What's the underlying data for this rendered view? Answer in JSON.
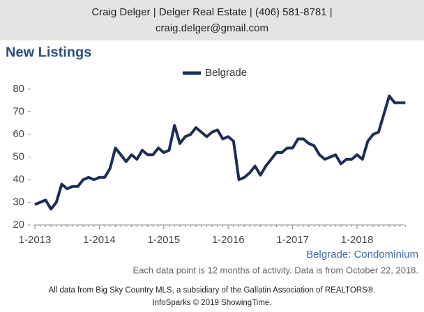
{
  "header": {
    "lines": [
      "Craig Delger | Delger Real Estate | (406) 581-8781 |",
      "craig.delger@gmail.com"
    ]
  },
  "chart_data": {
    "type": "line",
    "title": "New Listings",
    "categories": [
      "1-2013",
      null,
      null,
      null,
      null,
      null,
      null,
      null,
      null,
      null,
      null,
      null,
      "1-2014",
      null,
      null,
      null,
      null,
      null,
      null,
      null,
      null,
      null,
      null,
      null,
      "1-2015",
      null,
      null,
      null,
      null,
      null,
      null,
      null,
      null,
      null,
      null,
      null,
      "1-2016",
      null,
      null,
      null,
      null,
      null,
      null,
      null,
      null,
      null,
      null,
      null,
      "1-2017",
      null,
      null,
      null,
      null,
      null,
      null,
      null,
      null,
      null,
      null,
      null,
      "1-2018",
      null,
      null,
      null,
      null,
      null,
      null,
      null,
      null,
      null
    ],
    "series": [
      {
        "name": "Belgrade",
        "color": "#1c2d55",
        "values": [
          29,
          30,
          31,
          27,
          30,
          38,
          36,
          37,
          37,
          40,
          41,
          40,
          41,
          41,
          45,
          54,
          51,
          48,
          51,
          49,
          53,
          51,
          51,
          54,
          52,
          53,
          64,
          56,
          59,
          60,
          63,
          61,
          59,
          61,
          62,
          58,
          59,
          57,
          40,
          41,
          43,
          46,
          42,
          46,
          49,
          52,
          52,
          54,
          54,
          58,
          58,
          56,
          55,
          51,
          49,
          50,
          51,
          47,
          49,
          49,
          51,
          49,
          57,
          60,
          61,
          69,
          77,
          74,
          74,
          74
        ]
      }
    ],
    "ylim": [
      20,
      80
    ],
    "yticks": [
      20,
      30,
      40,
      50,
      60,
      70,
      80
    ],
    "caption": "Belgrade: Condominium",
    "note": "Each data point is 12 months of activity. Data is from October 22, 2018."
  },
  "footer": {
    "lines": [
      "All data from Big Sky Country MLS, a subsidiary of the Gallatin Association of REALTORS®.",
      "InfoSparks © 2019 ShowingTime."
    ]
  }
}
